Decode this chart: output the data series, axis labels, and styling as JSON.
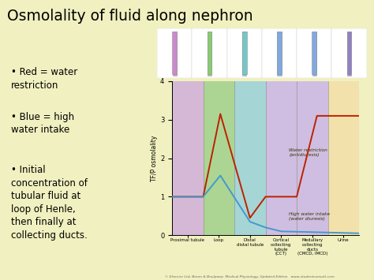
{
  "title": "Osmolality of fluid along nephron",
  "background_color": "#f0f0c0",
  "bullet_points": [
    "Red = water\nrestriction",
    "Blue = high\nwater intake",
    "Initial\nconcentration of\ntubular fluid at\nloop of Henle,\nthen finally at\ncollecting ducts."
  ],
  "ylabel": "TF/P osmolality",
  "ylim": [
    0,
    4
  ],
  "yticks": [
    0,
    1,
    2,
    3,
    4
  ],
  "section_labels": [
    "Proximal tubule",
    "Loop",
    "Distal\ndistal tubule",
    "Cortical\ncollecting\ntubule\n(CCT)",
    "Medullary\ncollecting\nducts\n(CMCD, IMCD)",
    "Urine"
  ],
  "section_colors": [
    "#c8a0c8",
    "#90c870",
    "#88c8c8",
    "#c0a8d8",
    "#c0a8d8",
    "#f0d890"
  ],
  "section_boundaries": [
    0,
    1,
    2,
    3,
    4,
    5,
    6
  ],
  "red_x": [
    0,
    1.0,
    1.55,
    2.5,
    3.0,
    4.0,
    4.65,
    6.0
  ],
  "red_y": [
    1.0,
    1.0,
    3.15,
    0.45,
    1.0,
    1.0,
    3.1,
    3.1
  ],
  "blue_x": [
    0,
    1.0,
    1.55,
    2.5,
    3.0,
    3.5,
    6.0
  ],
  "blue_y": [
    1.0,
    1.0,
    1.55,
    0.35,
    0.2,
    0.1,
    0.05
  ],
  "red_label": "Water restriction\n(antidiuresis)",
  "blue_label": "High water intake\n(water diuresis)",
  "copyright": "© Elsevier Ltd, Boron & Boulpaep: Medical Physiology, Updated Edition   www.studentconsult.com"
}
